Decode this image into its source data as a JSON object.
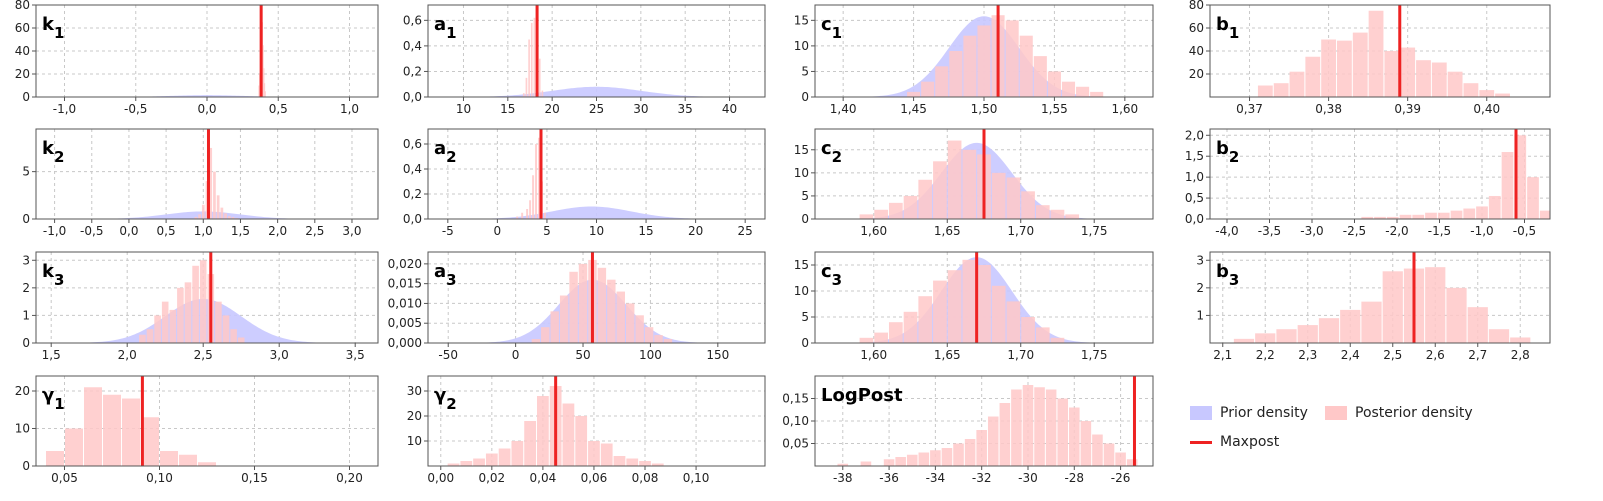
{
  "colors": {
    "prior": "#c8c8ff",
    "posterior": "#ffc8c8",
    "maxpost": "#ee2222"
  },
  "legend": {
    "prior": "Prior density",
    "posterior": "Posterior density",
    "maxpost": "Maxpost"
  },
  "chart_data": [
    {
      "name": "k1",
      "label": "k",
      "sub": "1",
      "type": "bar",
      "xlim": [
        -1.2,
        1.2
      ],
      "ylim": [
        0,
        80
      ],
      "xticks": [
        "-1,0",
        "-0,5",
        "0,0",
        "0,5",
        "1,0"
      ],
      "xtick_values": [
        -1,
        -0.5,
        0,
        0.5,
        1
      ],
      "yticks": [
        "0",
        "20",
        "40",
        "60",
        "80"
      ],
      "ytick_values": [
        0,
        20,
        40,
        60,
        80
      ],
      "prior": {
        "mean": 0,
        "sd": 0.25,
        "peak": 1.6
      },
      "posterior": {
        "x": [
          0.36,
          0.365,
          0.37,
          0.375,
          0.38,
          0.385,
          0.39,
          0.395,
          0.4,
          0.405
        ],
        "w": 0.005,
        "h": [
          10,
          20,
          35,
          55,
          70,
          65,
          45,
          25,
          12,
          5
        ]
      },
      "maxpost": 0.38
    },
    {
      "name": "a1",
      "label": "a",
      "sub": "1",
      "type": "bar",
      "xlim": [
        6,
        44
      ],
      "ylim": [
        0,
        0.72
      ],
      "xticks": [
        "10",
        "15",
        "20",
        "25",
        "30",
        "35",
        "40"
      ],
      "xtick_values": [
        10,
        15,
        20,
        25,
        30,
        35,
        40
      ],
      "yticks": [
        "0,0",
        "0,2",
        "0,4",
        "0,6"
      ],
      "ytick_values": [
        0,
        0.2,
        0.4,
        0.6
      ],
      "prior": {
        "mean": 25,
        "sd": 5,
        "peak": 0.08
      },
      "posterior": {
        "x": [
          16.8,
          17.1,
          17.4,
          17.7,
          18.0,
          18.3,
          18.6,
          18.9
        ],
        "w": 0.3,
        "h": [
          0.03,
          0.15,
          0.45,
          0.58,
          0.62,
          0.55,
          0.3,
          0.05
        ]
      },
      "maxpost": 18.3
    },
    {
      "name": "c1",
      "label": "c",
      "sub": "1",
      "type": "bar",
      "xlim": [
        1.38,
        1.62
      ],
      "ylim": [
        0,
        18
      ],
      "xticks": [
        "1,40",
        "1,45",
        "1,50",
        "1,55",
        "1,60"
      ],
      "xtick_values": [
        1.4,
        1.45,
        1.5,
        1.55,
        1.6
      ],
      "yticks": [
        "0",
        "5",
        "10",
        "15"
      ],
      "ytick_values": [
        0,
        5,
        10,
        15
      ],
      "prior": {
        "mean": 1.5,
        "sd": 0.025,
        "peak": 15.8
      },
      "posterior": {
        "x": [
          1.45,
          1.46,
          1.47,
          1.48,
          1.49,
          1.5,
          1.51,
          1.52,
          1.53,
          1.54,
          1.55,
          1.56,
          1.57,
          1.58
        ],
        "w": 0.01,
        "h": [
          1,
          3,
          6,
          9,
          12,
          14,
          16,
          15,
          12,
          8,
          5,
          3,
          2,
          1
        ]
      },
      "maxpost": 1.51
    },
    {
      "name": "b1",
      "label": "b",
      "sub": "1",
      "type": "bar",
      "xlim": [
        0.365,
        0.408
      ],
      "ylim": [
        0,
        80
      ],
      "xticks": [
        "0,37",
        "0,38",
        "0,39",
        "0,40"
      ],
      "xtick_values": [
        0.37,
        0.38,
        0.39,
        0.4
      ],
      "yticks": [
        "20",
        "40",
        "60",
        "80"
      ],
      "ytick_values": [
        20,
        40,
        60,
        80
      ],
      "posterior": {
        "x": [
          0.372,
          0.374,
          0.376,
          0.378,
          0.38,
          0.382,
          0.384,
          0.386,
          0.388,
          0.39,
          0.392,
          0.394,
          0.396,
          0.398,
          0.4,
          0.402
        ],
        "w": 0.002,
        "h": [
          10,
          12,
          22,
          35,
          50,
          49,
          56,
          75,
          40,
          43,
          32,
          30,
          22,
          12,
          6,
          3
        ]
      },
      "maxpost": 0.389
    },
    {
      "name": "k2",
      "label": "k",
      "sub": "2",
      "type": "bar",
      "xlim": [
        -1.25,
        3.35
      ],
      "ylim": [
        0,
        9.5
      ],
      "xticks": [
        "-1,0",
        "-0,5",
        "0,0",
        "0,5",
        "1,0",
        "1,5",
        "2,0",
        "2,5",
        "3,0"
      ],
      "xtick_values": [
        -1,
        -0.5,
        0,
        0.5,
        1,
        1.5,
        2,
        2.5,
        3
      ],
      "yticks": [
        "0",
        "5"
      ],
      "ytick_values": [
        0,
        5
      ],
      "prior": {
        "mean": 1.0,
        "sd": 0.5,
        "peak": 0.8
      },
      "posterior": {
        "x": [
          0.9,
          0.95,
          1.0,
          1.05,
          1.1,
          1.15,
          1.2,
          1.25,
          1.3,
          1.35,
          1.4,
          1.45
        ],
        "w": 0.05,
        "h": [
          0.2,
          0.5,
          1.5,
          4,
          7.5,
          5,
          2.5,
          1.2,
          0.6,
          0.3,
          0.2,
          0.1
        ]
      },
      "maxpost": 1.07
    },
    {
      "name": "a2",
      "label": "a",
      "sub": "2",
      "type": "bar",
      "xlim": [
        -7,
        27
      ],
      "ylim": [
        0,
        0.72
      ],
      "xticks": [
        "-5",
        "0",
        "5",
        "10",
        "15",
        "20",
        "25"
      ],
      "xtick_values": [
        -5,
        0,
        5,
        10,
        15,
        20,
        25
      ],
      "yticks": [
        "0,0",
        "0,2",
        "0,4",
        "0,6"
      ],
      "ytick_values": [
        0,
        0.2,
        0.4,
        0.6
      ],
      "prior": {
        "mean": 9.5,
        "sd": 4,
        "peak": 0.1
      },
      "posterior": {
        "x": [
          2.0,
          2.5,
          3.0,
          3.3,
          3.6,
          3.9,
          4.2,
          4.5,
          4.8
        ],
        "w": 0.3,
        "h": [
          0.02,
          0.05,
          0.08,
          0.15,
          0.35,
          0.6,
          0.65,
          0.3,
          0.05
        ]
      },
      "maxpost": 4.4
    },
    {
      "name": "c2",
      "label": "c",
      "sub": "2",
      "type": "bar",
      "xlim": [
        1.56,
        1.79
      ],
      "ylim": [
        0,
        19.5
      ],
      "xticks": [
        "1,60",
        "1,65",
        "1,70",
        "1,75"
      ],
      "xtick_values": [
        1.6,
        1.65,
        1.7,
        1.75
      ],
      "yticks": [
        "0",
        "5",
        "10",
        "15"
      ],
      "ytick_values": [
        0,
        5,
        10,
        15
      ],
      "prior": {
        "mean": 1.67,
        "sd": 0.024,
        "peak": 16.5
      },
      "posterior": {
        "x": [
          1.595,
          1.605,
          1.615,
          1.625,
          1.635,
          1.645,
          1.655,
          1.665,
          1.675,
          1.685,
          1.695,
          1.705,
          1.715,
          1.725,
          1.735
        ],
        "w": 0.01,
        "h": [
          1,
          2,
          3.5,
          5,
          8.5,
          12.5,
          17,
          15,
          14,
          10,
          9,
          6,
          3,
          2,
          1
        ]
      },
      "maxpost": 1.675
    },
    {
      "name": "b2",
      "label": "b",
      "sub": "2",
      "type": "bar",
      "xlim": [
        -4.2,
        -0.2
      ],
      "ylim": [
        0,
        2.15
      ],
      "xticks": [
        "-4,0",
        "-3,5",
        "-3,0",
        "-2,5",
        "-2,0",
        "-1,5",
        "-1,0",
        "-0,5"
      ],
      "xtick_values": [
        -4,
        -3.5,
        -3,
        -2.5,
        -2,
        -1.5,
        -1,
        -0.5
      ],
      "yticks": [
        "0,0",
        "0,5",
        "1,0",
        "1,5",
        "2,0"
      ],
      "ytick_values": [
        0,
        0.5,
        1,
        1.5,
        2
      ],
      "posterior": {
        "x": [
          -2.35,
          -2.2,
          -2.05,
          -1.9,
          -1.75,
          -1.6,
          -1.45,
          -1.3,
          -1.15,
          -1.0,
          -0.85,
          -0.7,
          -0.55,
          -0.4,
          -0.25
        ],
        "w": 0.15,
        "h": [
          0.05,
          0.05,
          0.05,
          0.1,
          0.1,
          0.15,
          0.15,
          0.2,
          0.25,
          0.3,
          0.55,
          1.6,
          2.0,
          1.0,
          0.2
        ]
      },
      "maxpost": -0.6
    },
    {
      "name": "k3",
      "label": "k",
      "sub": "3",
      "type": "bar",
      "xlim": [
        1.4,
        3.65
      ],
      "ylim": [
        0,
        3.3
      ],
      "xticks": [
        "1,5",
        "2,0",
        "2,5",
        "3,0",
        "3,5"
      ],
      "xtick_values": [
        1.5,
        2,
        2.5,
        3,
        3.5
      ],
      "yticks": [
        "0",
        "1",
        "2",
        "3"
      ],
      "ytick_values": [
        0,
        1,
        2,
        3
      ],
      "prior": {
        "mean": 2.5,
        "sd": 0.25,
        "peak": 1.6
      },
      "posterior": {
        "x": [
          2.1,
          2.15,
          2.2,
          2.25,
          2.3,
          2.35,
          2.4,
          2.45,
          2.5,
          2.55,
          2.6,
          2.65,
          2.7,
          2.75
        ],
        "w": 0.05,
        "h": [
          0.3,
          0.5,
          1.0,
          1.5,
          1.2,
          2.0,
          2.2,
          2.8,
          3.0,
          2.5,
          1.5,
          1.0,
          0.5,
          0.2
        ]
      },
      "maxpost": 2.55
    },
    {
      "name": "a3",
      "label": "a",
      "sub": "3",
      "type": "bar",
      "xlim": [
        -65,
        185
      ],
      "ylim": [
        0,
        0.023
      ],
      "xticks": [
        "-50",
        "0",
        "50",
        "100",
        "150"
      ],
      "xtick_values": [
        -50,
        0,
        50,
        100,
        150
      ],
      "yticks": [
        "0,000",
        "0,005",
        "0,010",
        "0,015",
        "0,020"
      ],
      "ytick_values": [
        0,
        0.005,
        0.01,
        0.015,
        0.02
      ],
      "prior": {
        "mean": 57,
        "sd": 25,
        "peak": 0.016
      },
      "posterior": {
        "x": [
          15,
          22,
          29,
          36,
          43,
          50,
          57,
          64,
          71,
          78,
          85,
          92,
          99,
          106,
          113
        ],
        "w": 7,
        "h": [
          0.001,
          0.004,
          0.008,
          0.012,
          0.018,
          0.02,
          0.021,
          0.019,
          0.016,
          0.013,
          0.01,
          0.007,
          0.004,
          0.002,
          0.001
        ]
      },
      "maxpost": 57
    },
    {
      "name": "c3",
      "label": "c",
      "sub": "3",
      "type": "bar",
      "xlim": [
        1.56,
        1.79
      ],
      "ylim": [
        0,
        17.5
      ],
      "xticks": [
        "1,60",
        "1,65",
        "1,70",
        "1,75"
      ],
      "xtick_values": [
        1.6,
        1.65,
        1.7,
        1.75
      ],
      "yticks": [
        "0",
        "5",
        "10",
        "15"
      ],
      "ytick_values": [
        0,
        5,
        10,
        15
      ],
      "prior": {
        "mean": 1.67,
        "sd": 0.024,
        "peak": 16.5
      },
      "posterior": {
        "x": [
          1.595,
          1.605,
          1.615,
          1.625,
          1.635,
          1.645,
          1.655,
          1.665,
          1.675,
          1.685,
          1.695,
          1.705,
          1.715,
          1.725
        ],
        "w": 0.01,
        "h": [
          1,
          2,
          4,
          6,
          9,
          12,
          14,
          16,
          15,
          11,
          8,
          5,
          3,
          1
        ]
      },
      "maxpost": 1.67
    },
    {
      "name": "b3",
      "label": "b",
      "sub": "3",
      "type": "bar",
      "xlim": [
        2.07,
        2.87
      ],
      "ylim": [
        0,
        3.3
      ],
      "xticks": [
        "2,1",
        "2,2",
        "2,3",
        "2,4",
        "2,5",
        "2,6",
        "2,7",
        "2,8"
      ],
      "xtick_values": [
        2.1,
        2.2,
        2.3,
        2.4,
        2.5,
        2.6,
        2.7,
        2.8
      ],
      "yticks": [
        "1",
        "2",
        "3"
      ],
      "ytick_values": [
        1,
        2,
        3
      ],
      "posterior": {
        "x": [
          2.15,
          2.2,
          2.25,
          2.3,
          2.35,
          2.4,
          2.45,
          2.5,
          2.55,
          2.6,
          2.65,
          2.7,
          2.75,
          2.8
        ],
        "w": 0.05,
        "h": [
          0.15,
          0.35,
          0.5,
          0.65,
          0.9,
          1.2,
          1.5,
          2.6,
          2.7,
          2.75,
          2.0,
          1.3,
          0.5,
          0.2
        ]
      },
      "maxpost": 2.55
    },
    {
      "name": "gamma1",
      "label": "γ",
      "sub": "1",
      "type": "bar",
      "xlim": [
        0.035,
        0.215
      ],
      "ylim": [
        0,
        24
      ],
      "xticks": [
        "0,05",
        "0,10",
        "0,15",
        "0,20"
      ],
      "xtick_values": [
        0.05,
        0.1,
        0.15,
        0.2
      ],
      "yticks": [
        "0",
        "10",
        "20"
      ],
      "ytick_values": [
        0,
        10,
        20
      ],
      "posterior": {
        "x": [
          0.045,
          0.055,
          0.065,
          0.075,
          0.085,
          0.095,
          0.105,
          0.115,
          0.125
        ],
        "w": 0.01,
        "h": [
          4,
          10,
          21,
          19,
          18,
          13,
          4,
          3,
          1
        ]
      },
      "maxpost": 0.091
    },
    {
      "name": "gamma2",
      "label": "γ",
      "sub": "2",
      "type": "bar",
      "xlim": [
        -0.005,
        0.127
      ],
      "ylim": [
        0,
        36
      ],
      "xticks": [
        "0,00",
        "0,02",
        "0,04",
        "0,06",
        "0,08",
        "0,10"
      ],
      "xtick_values": [
        0,
        0.02,
        0.04,
        0.06,
        0.08,
        0.1
      ],
      "yticks": [
        "10",
        "20",
        "30"
      ],
      "ytick_values": [
        10,
        20,
        30
      ],
      "posterior": {
        "x": [
          0.005,
          0.01,
          0.015,
          0.02,
          0.025,
          0.03,
          0.035,
          0.04,
          0.045,
          0.05,
          0.055,
          0.06,
          0.065,
          0.07,
          0.075,
          0.08,
          0.085
        ],
        "w": 0.005,
        "h": [
          1,
          2,
          3,
          5,
          7,
          10,
          18,
          28,
          32,
          25,
          20,
          10,
          9,
          4,
          3,
          2,
          1
        ]
      },
      "maxpost": 0.045
    },
    {
      "name": "logpost",
      "label": "LogPost",
      "sub": "",
      "type": "bar",
      "xlim": [
        -39.2,
        -24.6
      ],
      "ylim": [
        0,
        0.2
      ],
      "xticks": [
        "-38",
        "-36",
        "-34",
        "-32",
        "-30",
        "-28",
        "-26"
      ],
      "xtick_values": [
        -38,
        -36,
        -34,
        -32,
        -30,
        -28,
        -26
      ],
      "yticks": [
        "0,05",
        "0,10",
        "0,15"
      ],
      "ytick_values": [
        0.05,
        0.1,
        0.15
      ],
      "posterior": {
        "x": [
          -38,
          -37,
          -36,
          -35.5,
          -35,
          -34.5,
          -34,
          -33.5,
          -33,
          -32.5,
          -32,
          -31.5,
          -31,
          -30.5,
          -30,
          -29.5,
          -29,
          -28.5,
          -28,
          -27.5,
          -27,
          -26.5,
          -26,
          -25.5
        ],
        "w": 0.5,
        "h": [
          0.005,
          0.01,
          0.015,
          0.02,
          0.025,
          0.03,
          0.035,
          0.04,
          0.05,
          0.06,
          0.08,
          0.11,
          0.14,
          0.17,
          0.18,
          0.175,
          0.17,
          0.15,
          0.13,
          0.1,
          0.07,
          0.05,
          0.03,
          0.015
        ]
      },
      "maxpost": -25.4
    }
  ]
}
